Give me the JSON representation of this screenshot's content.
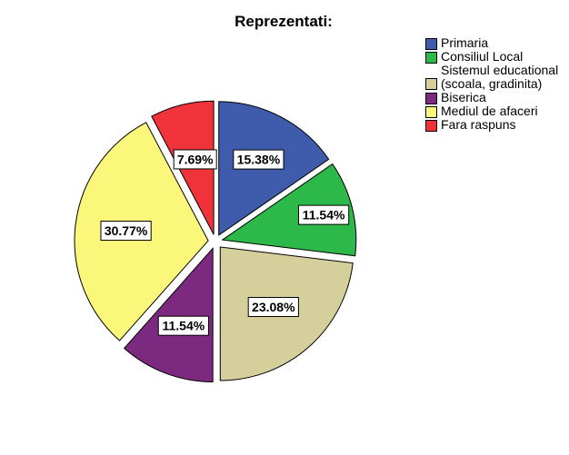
{
  "chart_data": {
    "type": "pie",
    "title": "Reprezentati:",
    "legend_position": "right",
    "slices": [
      {
        "name": "Primaria",
        "value": 15.38,
        "label": "15.38%",
        "color": "#3f5bab"
      },
      {
        "name": "Consiliul Local",
        "value": 11.54,
        "label": "11.54%",
        "color": "#2db84a"
      },
      {
        "name": "Sistemul educational (scoala, gradinita)",
        "value": 23.08,
        "label": "23.08%",
        "color": "#d4cf9b"
      },
      {
        "name": "Biserica",
        "value": 11.54,
        "label": "11.54%",
        "color": "#7b2a80"
      },
      {
        "name": "Mediul de afaceri",
        "value": 30.77,
        "label": "30.77%",
        "color": "#fbf77a"
      },
      {
        "name": "Fara raspuns",
        "value": 7.69,
        "label": "7.69%",
        "color": "#f0333b"
      }
    ]
  },
  "legend": {
    "items": [
      {
        "label": "Primaria",
        "color": "#3f5bab"
      },
      {
        "label": "Consiliul Local",
        "color": "#2db84a"
      },
      {
        "label": "Sistemul educational (scoala, gradinita)",
        "color": "#d4cf9b"
      },
      {
        "label": "Biserica",
        "color": "#7b2a80"
      },
      {
        "label": "Mediul de afaceri",
        "color": "#fbf77a"
      },
      {
        "label": "Fara raspuns",
        "color": "#f0333b"
      }
    ]
  }
}
